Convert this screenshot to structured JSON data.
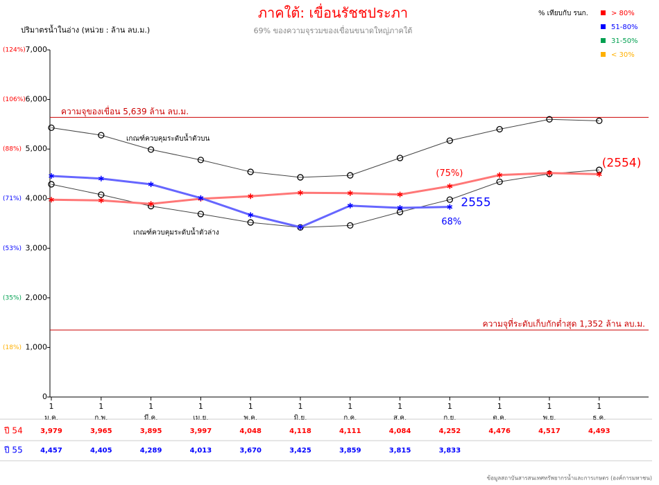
{
  "chart_data": {
    "type": "line",
    "title": "ภาคใต้: เขื่อนรัชชประภา",
    "subtitle": "69%  ของความจุรวมของเขื่อนขนาดใหญ่ภาคใต้",
    "y_label": "ปริมาตรน้ำในอ่าง (หน่วย : ล้าน ลบ.ม.)",
    "source": "ข้อมูลสถาบันสารสนเทศทรัพยากรน้ำและการเกษตร (องค์การมหาชน)",
    "legend_title": "% เทียบกับ รนก.",
    "legend": [
      {
        "label": "> 80%",
        "color": "#ff0000"
      },
      {
        "label": "51-80%",
        "color": "#0000ff"
      },
      {
        "label": "31-50%",
        "color": "#00a050"
      },
      {
        "label": "< 30%",
        "color": "#ffb000"
      }
    ],
    "day_label": "1",
    "categories": [
      "ม.ค.",
      "ก.พ.",
      "มี.ค.",
      "เม.ย.",
      "พ.ค.",
      "มิ.ย.",
      "ก.ค.",
      "ส.ค.",
      "ก.ย.",
      "ต.ค.",
      "พ.ย.",
      "ธ.ค."
    ],
    "ylim": [
      0,
      7000
    ],
    "yticks": [
      0,
      {
        "value": 1000,
        "label": "1,000"
      },
      {
        "value": 2000,
        "label": "2,000"
      },
      {
        "value": 3000,
        "label": "3,000"
      },
      {
        "value": 4000,
        "label": "4,000"
      },
      {
        "value": 5000,
        "label": "5,000"
      },
      {
        "value": 6000,
        "label": "6,000"
      },
      {
        "value": 7000,
        "label": "7,000"
      }
    ],
    "percent_ticks": [
      {
        "value": 1000,
        "label": "(18%)",
        "color": "#ffb000"
      },
      {
        "value": 2000,
        "label": "(35%)",
        "color": "#00a050"
      },
      {
        "value": 3000,
        "label": "(53%)",
        "color": "#0000ff"
      },
      {
        "value": 4000,
        "label": "(71%)",
        "color": "#0000ff"
      },
      {
        "value": 5000,
        "label": "(88%)",
        "color": "#ff0000"
      },
      {
        "value": 6000,
        "label": "(106%)",
        "color": "#ff0000"
      },
      {
        "value": 7000,
        "label": "(124%)",
        "color": "#ff0000"
      }
    ],
    "reference_lines": [
      {
        "value": 5639,
        "label": "ความจุของเขื่อน 5,639 ล้าน ลบ.ม.",
        "color": "#cc0000"
      },
      {
        "value": 1352,
        "label": "ความจุที่ระดับเก็บกักต่ำสุด 1,352 ล้าน ลบ.ม.",
        "color": "#cc0000"
      }
    ],
    "series": [
      {
        "name": "เกณฑ์ควบคุมระดับน้ำตัวบน",
        "color": "#444444",
        "marker": "circle",
        "values": [
          5430,
          5280,
          4990,
          4780,
          4540,
          4430,
          4470,
          4820,
          5170,
          5400,
          5600,
          5570
        ]
      },
      {
        "name": "เกณฑ์ควบคุมระดับน้ำตัวล่าง",
        "color": "#444444",
        "marker": "circle",
        "values": [
          4290,
          4080,
          3850,
          3690,
          3520,
          3420,
          3460,
          3730,
          3980,
          4340,
          4500,
          4580
        ]
      },
      {
        "name": "ปี 54",
        "color": "#ff0000",
        "line_color": "#ff7777",
        "marker": "star",
        "tag": "(2554)",
        "note": "(75%)",
        "values": [
          3979,
          3965,
          3895,
          3997,
          4048,
          4118,
          4111,
          4084,
          4252,
          4476,
          4517,
          4493
        ],
        "value_labels": [
          "3,979",
          "3,965",
          "3,895",
          "3,997",
          "4,048",
          "4,118",
          "4,111",
          "4,084",
          "4,252",
          "4,476",
          "4,517",
          "4,493"
        ]
      },
      {
        "name": "ปี 55",
        "color": "#0000ff",
        "line_color": "#6666ff",
        "marker": "star",
        "tag": "2555",
        "note": "68%",
        "values": [
          4457,
          4405,
          4289,
          4013,
          3670,
          3425,
          3859,
          3815,
          3833,
          null,
          null,
          null
        ],
        "value_labels": [
          "4,457",
          "4,405",
          "4,289",
          "4,013",
          "3,670",
          "3,425",
          "3,859",
          "3,815",
          "3,833",
          null,
          null,
          null
        ]
      }
    ]
  }
}
